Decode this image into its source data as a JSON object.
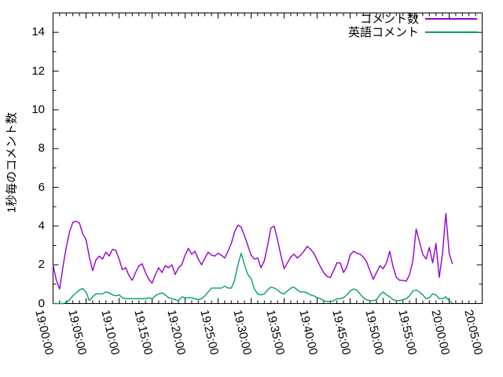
{
  "chart_data": {
    "type": "line",
    "title": "",
    "xlabel": "",
    "ylabel": "1秒毎のコメント数",
    "ylim": [
      0,
      15
    ],
    "y_ticks": [
      "0",
      "2",
      "4",
      "6",
      "8",
      "10",
      "12",
      "14"
    ],
    "x_ticks": [
      "19:00:00",
      "19:05:00",
      "19:10:00",
      "19:15:00",
      "19:20:00",
      "19:25:00",
      "19:30:00",
      "19:35:00",
      "19:40:00",
      "19:45:00",
      "19:50:00",
      "19:55:00",
      "20:00:00",
      "20:05:00"
    ],
    "x_range_minutes_after_1900": [
      0,
      65
    ],
    "x_major_tick_interval_minutes": 5,
    "x_minor_tick_interval_minutes": 1,
    "grid": false,
    "legend_position": "top-right-inside",
    "axis_color": "#000000",
    "text_color": "#000000",
    "background_color": "#ffffff",
    "x_minutes_after_1900": [
      0,
      0.5,
      1,
      1.5,
      2,
      2.5,
      3,
      3.5,
      4,
      4.5,
      5,
      5.5,
      6,
      6.5,
      7,
      7.5,
      8,
      8.5,
      9,
      9.5,
      10,
      10.5,
      11,
      11.5,
      12,
      12.5,
      13,
      13.5,
      14,
      14.5,
      15,
      15.5,
      16,
      16.5,
      17,
      17.5,
      18,
      18.5,
      19,
      19.5,
      20,
      20.5,
      21,
      21.5,
      22,
      22.5,
      23,
      23.5,
      24,
      24.5,
      25,
      25.5,
      26,
      26.5,
      27,
      27.5,
      28,
      28.5,
      29,
      29.5,
      30,
      30.5,
      31,
      31.5,
      32,
      32.5,
      33,
      33.5,
      34,
      34.5,
      35,
      35.5,
      36,
      36.5,
      37,
      37.5,
      38,
      38.5,
      39,
      39.5,
      40,
      40.5,
      41,
      41.5,
      42,
      42.5,
      43,
      43.5,
      44,
      44.5,
      45,
      45.5,
      46,
      46.5,
      47,
      47.5,
      48,
      48.5,
      49,
      49.5,
      50,
      50.5,
      51,
      51.5,
      52,
      52.5,
      53,
      53.5,
      54,
      54.5,
      55,
      55.5,
      56,
      56.5,
      57,
      57.5,
      58,
      58.5,
      59,
      59.5,
      60,
      60.5
    ],
    "series": [
      {
        "name": "コメント数",
        "color": "#9400d3",
        "values": [
          2.0,
          1.2,
          0.75,
          1.9,
          2.9,
          3.7,
          4.2,
          4.25,
          4.15,
          3.6,
          3.3,
          2.4,
          1.7,
          2.25,
          2.45,
          2.3,
          2.65,
          2.45,
          2.8,
          2.75,
          2.3,
          1.75,
          1.85,
          1.45,
          1.2,
          1.6,
          1.95,
          2.05,
          1.6,
          1.25,
          1.05,
          1.5,
          1.85,
          1.6,
          1.95,
          1.85,
          2.0,
          1.5,
          1.85,
          2.0,
          2.5,
          2.85,
          2.55,
          2.7,
          2.3,
          2.0,
          2.35,
          2.65,
          2.5,
          2.45,
          2.6,
          2.5,
          2.35,
          2.7,
          3.1,
          3.7,
          4.05,
          3.95,
          3.5,
          3.0,
          2.5,
          2.3,
          2.35,
          1.85,
          2.2,
          3.0,
          3.9,
          4.0,
          3.3,
          2.5,
          1.8,
          2.1,
          2.4,
          2.55,
          2.35,
          2.5,
          2.7,
          2.95,
          2.8,
          2.6,
          2.25,
          1.9,
          1.6,
          1.4,
          1.35,
          1.7,
          2.1,
          2.1,
          1.6,
          1.9,
          2.5,
          2.7,
          2.6,
          2.55,
          2.4,
          2.15,
          1.7,
          1.25,
          1.6,
          1.95,
          1.8,
          2.1,
          2.7,
          1.9,
          1.35,
          1.2,
          1.2,
          1.15,
          1.5,
          2.2,
          3.85,
          3.2,
          2.55,
          2.3,
          2.9,
          2.1,
          3.1,
          1.35,
          2.6,
          4.65,
          2.6,
          2.05
        ]
      },
      {
        "name": "英語コメント",
        "color": "#009e73",
        "values": [
          0,
          0,
          0,
          0,
          0.05,
          0.2,
          0.4,
          0.55,
          0.7,
          0.78,
          0.6,
          0.15,
          0.35,
          0.5,
          0.5,
          0.5,
          0.6,
          0.55,
          0.45,
          0.4,
          0.45,
          0.3,
          0.25,
          0.25,
          0.25,
          0.25,
          0.25,
          0.25,
          0.25,
          0.3,
          0.25,
          0.4,
          0.5,
          0.55,
          0.45,
          0.3,
          0.25,
          0.2,
          0.15,
          0.35,
          0.3,
          0.3,
          0.3,
          0.25,
          0.2,
          0.25,
          0.4,
          0.6,
          0.8,
          0.8,
          0.8,
          0.8,
          0.9,
          0.8,
          0.8,
          1.2,
          2.0,
          2.6,
          2.0,
          1.5,
          1.3,
          0.75,
          0.5,
          0.45,
          0.5,
          0.7,
          0.85,
          0.8,
          0.7,
          0.55,
          0.5,
          0.65,
          0.8,
          0.85,
          0.7,
          0.6,
          0.6,
          0.55,
          0.45,
          0.4,
          0.3,
          0.25,
          0.15,
          0.1,
          0.1,
          0.15,
          0.25,
          0.25,
          0.3,
          0.45,
          0.65,
          0.75,
          0.7,
          0.5,
          0.3,
          0.2,
          0.15,
          0.15,
          0.2,
          0.45,
          0.6,
          0.45,
          0.35,
          0.2,
          0.15,
          0.15,
          0.2,
          0.25,
          0.4,
          0.65,
          0.7,
          0.6,
          0.45,
          0.25,
          0.3,
          0.5,
          0.45,
          0.25,
          0.25,
          0.35,
          0.15,
          0.05
        ]
      }
    ]
  }
}
